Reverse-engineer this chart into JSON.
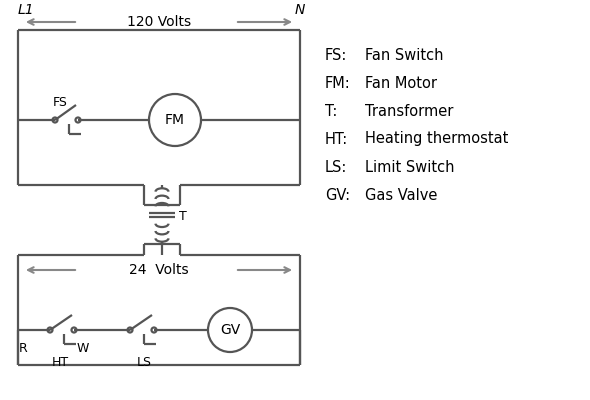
{
  "bg_color": "#ffffff",
  "line_color": "#555555",
  "arrow_color": "#888888",
  "text_color": "#000000",
  "legend_items": [
    [
      "FS:",
      "Fan Switch"
    ],
    [
      "FM:",
      "Fan Motor"
    ],
    [
      "T:",
      "Transformer"
    ],
    [
      "HT:",
      "Heating thermostat"
    ],
    [
      "LS:",
      "Limit Switch"
    ],
    [
      "GV:",
      "Gas Valve"
    ]
  ],
  "volts_120": "120 Volts",
  "volts_24": "24  Volts",
  "L1_label": "L1",
  "N_label": "N",
  "R_label": "R",
  "W_label": "W",
  "T_label": "T",
  "HT_label": "HT",
  "LS_label": "LS",
  "FS_label": "FS",
  "FM_label": "FM",
  "GV_label": "GV"
}
